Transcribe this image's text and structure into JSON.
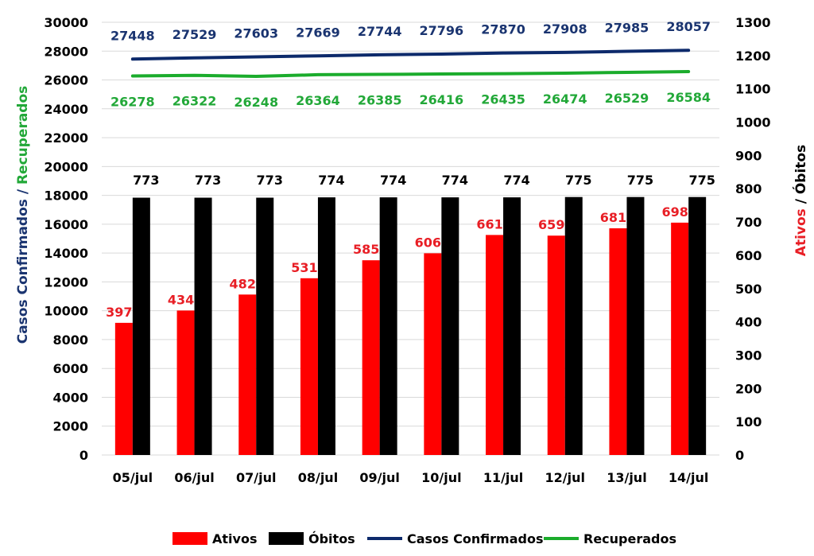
{
  "chart_data": {
    "type": "bar",
    "categories": [
      "05/jul",
      "06/jul",
      "07/jul",
      "08/jul",
      "09/jul",
      "10/jul",
      "11/jul",
      "12/jul",
      "13/jul",
      "14/jul"
    ],
    "left_axis": {
      "ylim": [
        0,
        30000
      ],
      "ticks": [
        "0",
        "2000",
        "4000",
        "6000",
        "8000",
        "10000",
        "12000",
        "14000",
        "16000",
        "18000",
        "20000",
        "22000",
        "24000",
        "26000",
        "28000",
        "30000"
      ],
      "label_part1": "Casos Confirmados",
      "label_sep": " / ",
      "label_part2": "Recuperados"
    },
    "right_axis": {
      "ylim": [
        0,
        1300
      ],
      "ticks": [
        "0",
        "100",
        "200",
        "300",
        "400",
        "500",
        "600",
        "700",
        "800",
        "900",
        "1000",
        "1100",
        "1200",
        "1300"
      ],
      "label_part1": "Ativos",
      "label_sep": " / ",
      "label_part2": "Óbitos"
    },
    "grid": true,
    "legend_position": "bottom",
    "series": [
      {
        "name": "Ativos",
        "kind": "bar",
        "axis": "right",
        "color": "#ff0000",
        "label_color": "#e81e25",
        "values": [
          397,
          434,
          482,
          531,
          585,
          606,
          661,
          659,
          681,
          698
        ]
      },
      {
        "name": "Óbitos",
        "kind": "bar",
        "axis": "right",
        "color": "#000000",
        "label_color": "#000000",
        "values": [
          773,
          773,
          773,
          774,
          774,
          774,
          774,
          775,
          775,
          775
        ]
      },
      {
        "name": "Casos Confirmados",
        "kind": "line",
        "axis": "left",
        "color": "#0d2a6b",
        "label_color": "#1a3470",
        "values": [
          27448,
          27529,
          27603,
          27669,
          27744,
          27796,
          27870,
          27908,
          27985,
          28057
        ]
      },
      {
        "name": "Recuperados",
        "kind": "line",
        "axis": "left",
        "color": "#1bac2c",
        "label_color": "#22a838",
        "values": [
          26278,
          26322,
          26248,
          26364,
          26385,
          26416,
          26435,
          26474,
          26529,
          26584
        ]
      }
    ],
    "axis_colors": {
      "confirmados": "#1a3470",
      "recuperados": "#22a838",
      "ativos": "#e81e25",
      "obitos": "#000000"
    },
    "text_color": "#000000",
    "grid_color": "#d9d9d9"
  }
}
